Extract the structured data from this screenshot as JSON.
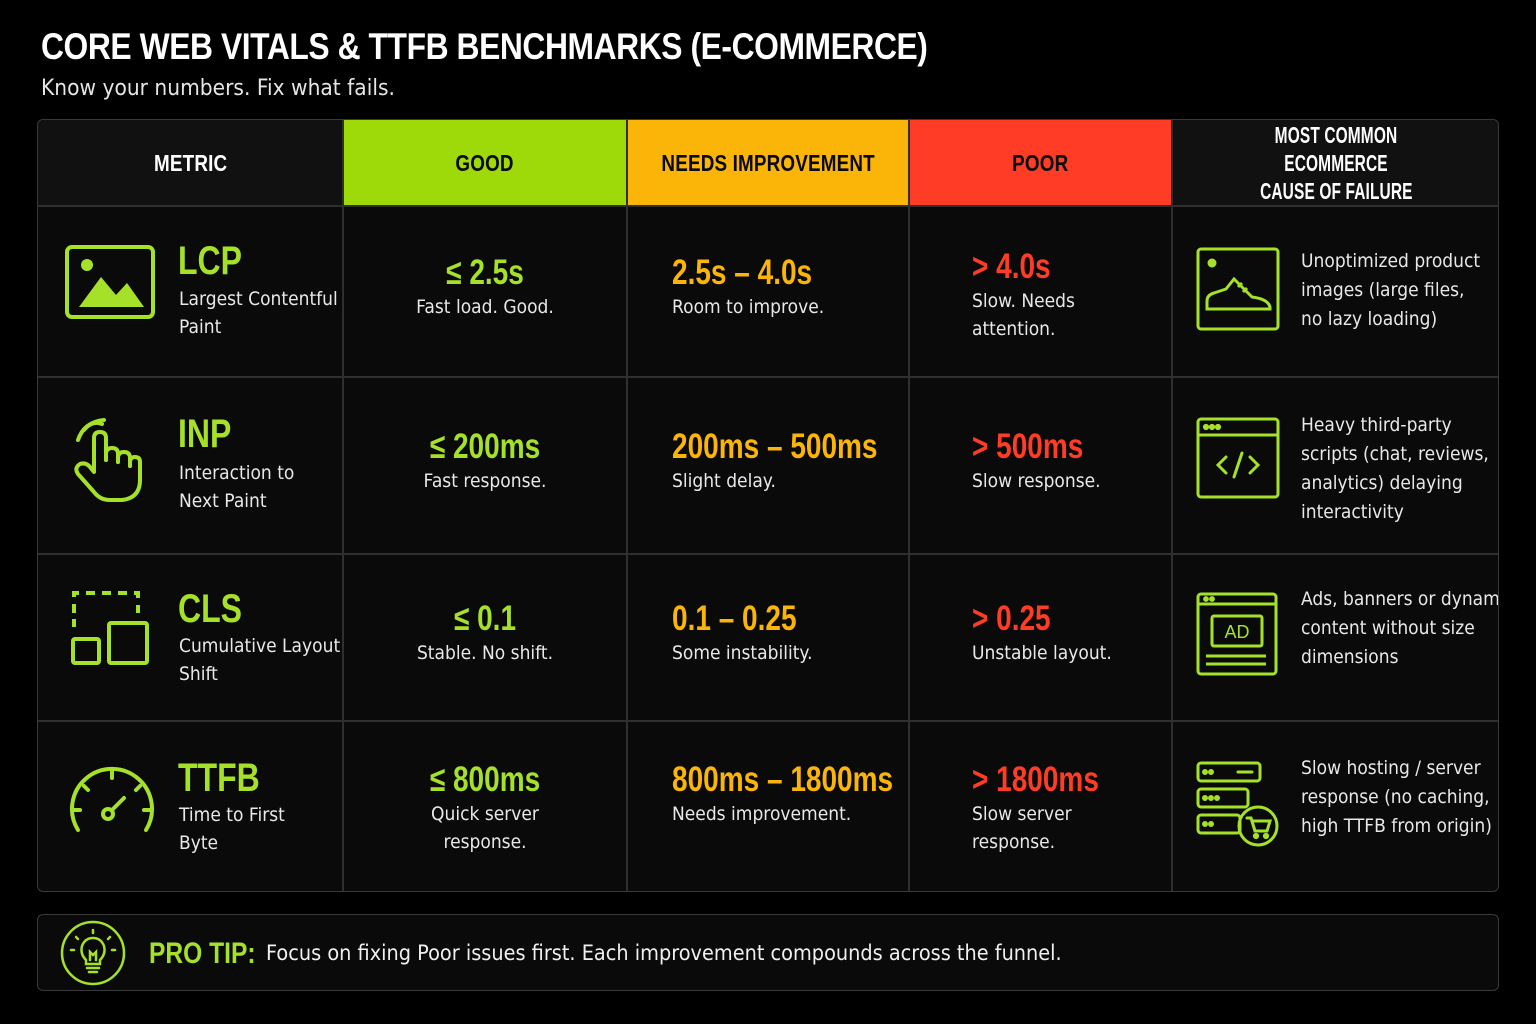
{
  "title": "CORE WEB VITALS & TTFB BENCHMARKS (E-COMMERCE)",
  "subtitle": "Know your numbers. Fix what fails.",
  "headers": {
    "metric": "METRIC",
    "good": "GOOD",
    "needs": "NEEDS IMPROVEMENT",
    "poor": "POOR",
    "cause_line1": "MOST COMMON ECOMMERCE",
    "cause_line2": "CAUSE OF FAILURE"
  },
  "colors": {
    "accent": "#a6e12a",
    "good": "#9ed90a",
    "needs": "#fbb509",
    "poor": "#ff3c26"
  },
  "rows": [
    {
      "icon": "image-icon",
      "abbr": "LCP",
      "name_lines": [
        "Largest Contentful",
        "Paint"
      ],
      "good_value": "≤ 2.5s",
      "good_desc": [
        "Fast load. Good."
      ],
      "needs_value": "2.5s – 4.0s",
      "needs_desc": [
        "Room to improve."
      ],
      "poor_value": "> 4.0s",
      "poor_desc": [
        "Slow. Needs",
        "attention."
      ],
      "cause_icon": "product-image-icon",
      "cause_lines": [
        "Unoptimized product",
        "images (large files,",
        "no lazy loading)"
      ]
    },
    {
      "icon": "tap-hand-icon",
      "abbr": "INP",
      "name_lines": [
        "Interaction to",
        "Next Paint"
      ],
      "good_value": "≤ 200ms",
      "good_desc": [
        "Fast response."
      ],
      "needs_value": "200ms – 500ms",
      "needs_desc": [
        "Slight delay."
      ],
      "poor_value": "> 500ms",
      "poor_desc": [
        "Slow response."
      ],
      "cause_icon": "code-window-icon",
      "cause_lines": [
        "Heavy third-party",
        "scripts (chat, reviews,",
        "analytics) delaying",
        "interactivity"
      ]
    },
    {
      "icon": "layout-shift-icon",
      "abbr": "CLS",
      "name_lines": [
        "Cumulative Layout",
        "Shift"
      ],
      "good_value": "≤ 0.1",
      "good_desc": [
        "Stable. No shift."
      ],
      "needs_value": "0.1 – 0.25",
      "needs_desc": [
        "Some instability."
      ],
      "poor_value": "> 0.25",
      "poor_desc": [
        "Unstable layout."
      ],
      "cause_icon": "ad-banner-icon",
      "cause_lines": [
        "Ads, banners or dynamic",
        "content without size",
        "dimensions"
      ],
      "cause_ad_label": "AD"
    },
    {
      "icon": "speedometer-icon",
      "abbr": "TTFB",
      "name_lines": [
        "Time to First",
        "Byte"
      ],
      "good_value": "≤ 800ms",
      "good_desc": [
        "Quick server",
        "response."
      ],
      "needs_value": "800ms – 1800ms",
      "needs_desc": [
        "Needs improvement."
      ],
      "poor_value": "> 1800ms",
      "poor_desc": [
        "Slow server",
        "response."
      ],
      "cause_icon": "server-cart-icon",
      "cause_lines": [
        "Slow hosting / server",
        "response (no caching,",
        "high TTFB from origin)"
      ]
    }
  ],
  "tip": {
    "icon": "lightbulb-icon",
    "label": "PRO TIP:",
    "text": "Focus on fixing Poor issues first. Each improvement compounds across the funnel."
  }
}
